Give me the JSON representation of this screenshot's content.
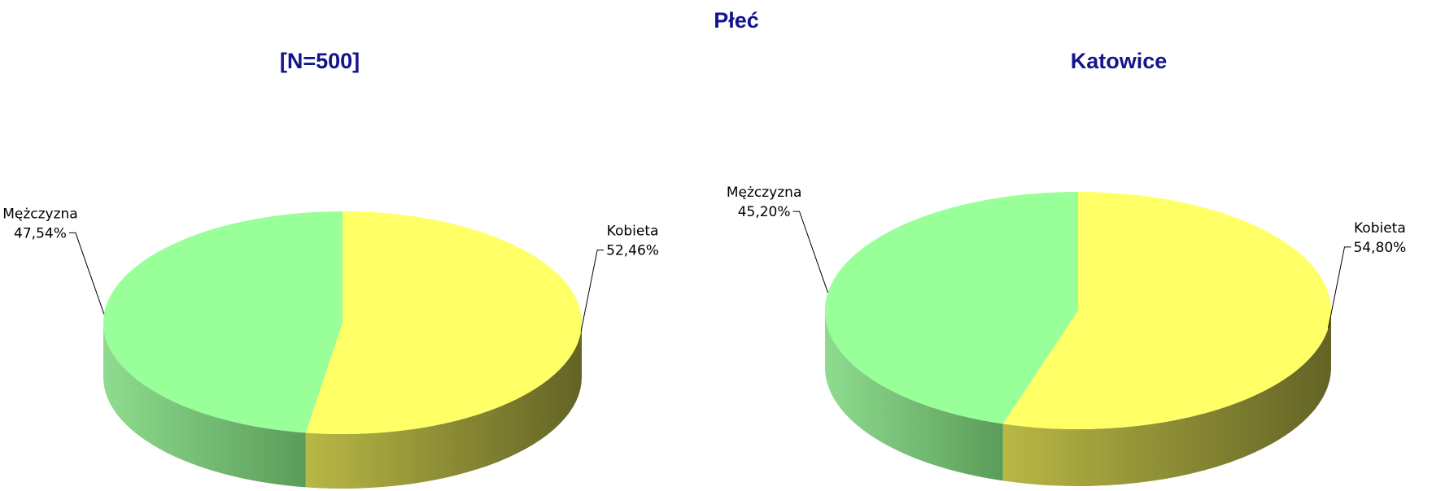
{
  "title": "Płeć",
  "chart_data": [
    {
      "type": "pie",
      "title": "[N=500]",
      "categories": [
        "Kobieta",
        "Mężczyzna"
      ],
      "values": [
        52.46,
        47.54
      ],
      "value_labels": [
        "52,46%",
        "47,54%"
      ],
      "colors": [
        "#ffff66",
        "#99ff99"
      ]
    },
    {
      "type": "pie",
      "title": "Katowice",
      "categories": [
        "Kobieta",
        "Mężczyzna"
      ],
      "values": [
        54.8,
        45.2
      ],
      "value_labels": [
        "54,80%",
        "45,20%"
      ],
      "colors": [
        "#ffff66",
        "#99ff99"
      ]
    }
  ]
}
